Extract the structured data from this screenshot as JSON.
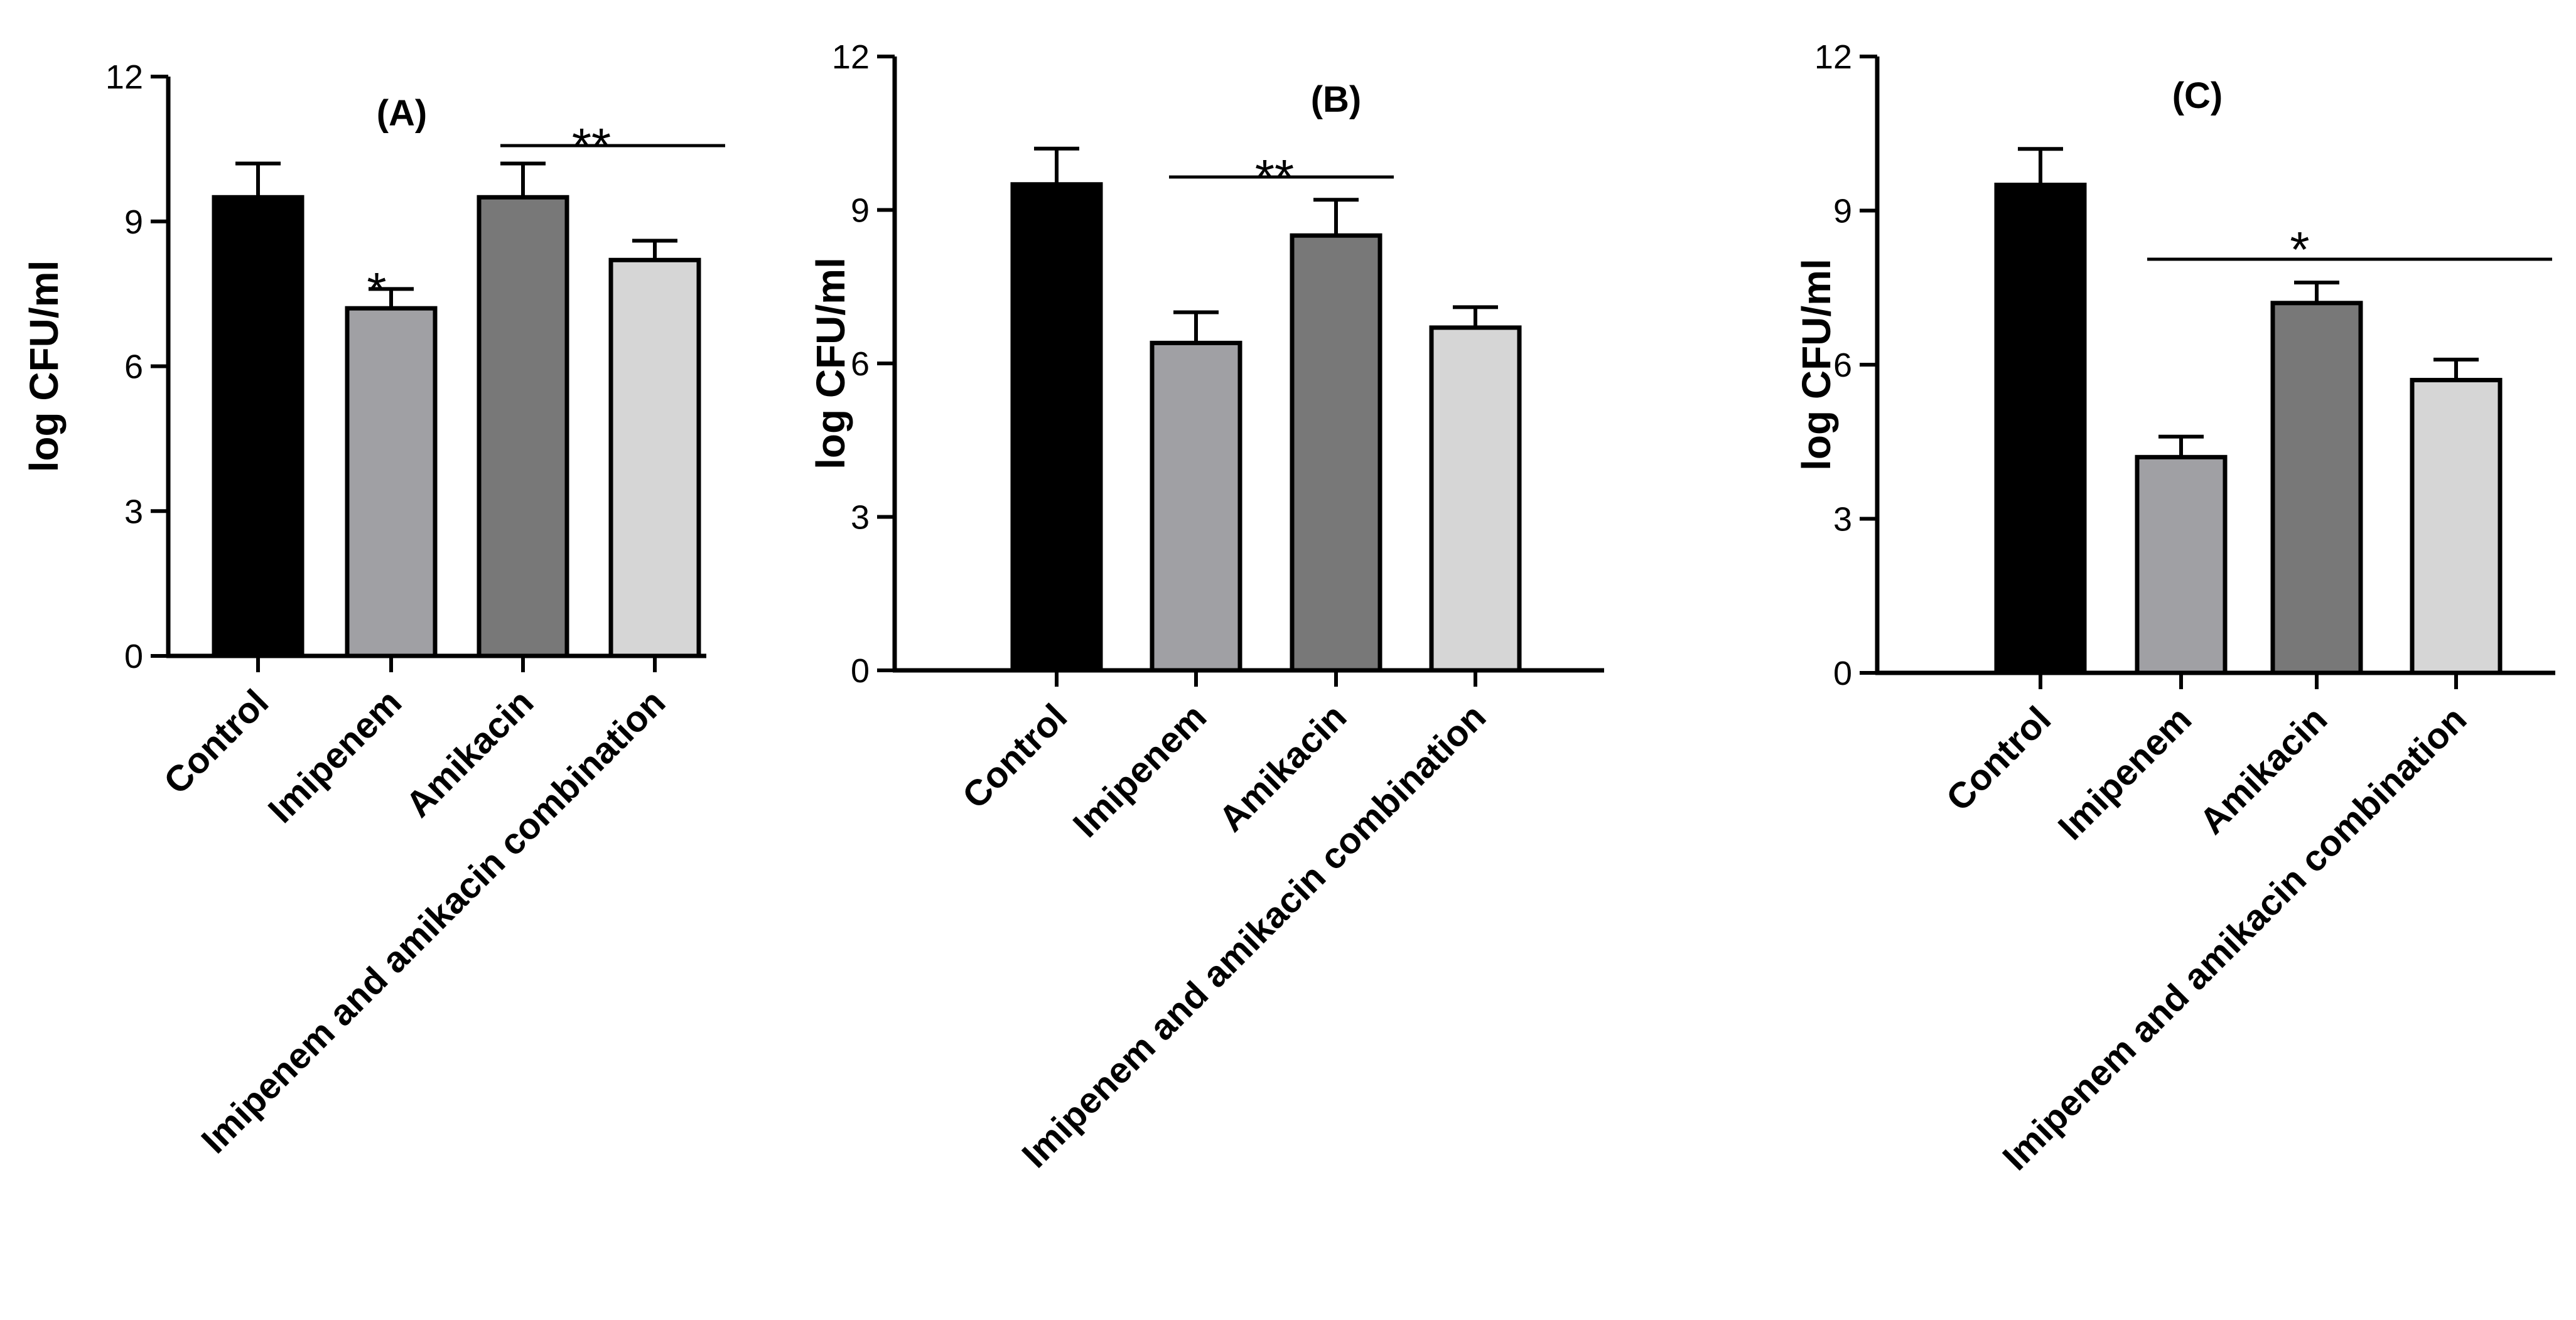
{
  "colors": {
    "bar_fills": [
      "#000000",
      "#a0a0a4",
      "#787878",
      "#d6d6d6"
    ],
    "stroke": "#000000",
    "background": "#ffffff"
  },
  "chart_data": [
    {
      "type": "bar",
      "title": "(A)",
      "ylabel": "log CFU/ml",
      "xlabel": "",
      "ylim": [
        0,
        12
      ],
      "yticks": [
        "0",
        "3",
        "6",
        "9",
        "12"
      ],
      "categories": [
        "Control",
        "Imipenem",
        "Amikacin",
        "Imipenem and amikacin combination"
      ],
      "values": [
        9.5,
        7.2,
        9.5,
        8.2
      ],
      "errors": [
        0.7,
        0.4,
        0.7,
        0.4
      ],
      "annotations": [
        {
          "text": "*",
          "categories": [
            1
          ]
        },
        {
          "text": "**",
          "categories": [
            2,
            3
          ]
        }
      ]
    },
    {
      "type": "bar",
      "title": "(B)",
      "ylabel": "log CFU/ml",
      "xlabel": "",
      "ylim": [
        0,
        12
      ],
      "yticks": [
        "0",
        "3",
        "6",
        "9",
        "12"
      ],
      "categories": [
        "Control",
        "Imipenem",
        "Amikacin",
        "Imipenem and amikacin combination"
      ],
      "values": [
        9.5,
        6.4,
        8.5,
        6.7
      ],
      "errors": [
        0.7,
        0.6,
        0.7,
        0.4
      ],
      "annotations": [
        {
          "text": "**",
          "categories": [
            1,
            2
          ]
        }
      ]
    },
    {
      "type": "bar",
      "title": "(C)",
      "ylabel": "log CFU/ml",
      "xlabel": "",
      "ylim": [
        0,
        12
      ],
      "yticks": [
        "0",
        "3",
        "6",
        "9",
        "12"
      ],
      "categories": [
        "Control",
        "Imipenem",
        "Amikacin",
        "Imipenem and amikacin combination"
      ],
      "values": [
        9.5,
        4.2,
        7.2,
        5.7
      ],
      "errors": [
        0.7,
        0.4,
        0.4,
        0.4
      ],
      "annotations": [
        {
          "text": "*",
          "categories": [
            1,
            3
          ]
        }
      ]
    }
  ]
}
